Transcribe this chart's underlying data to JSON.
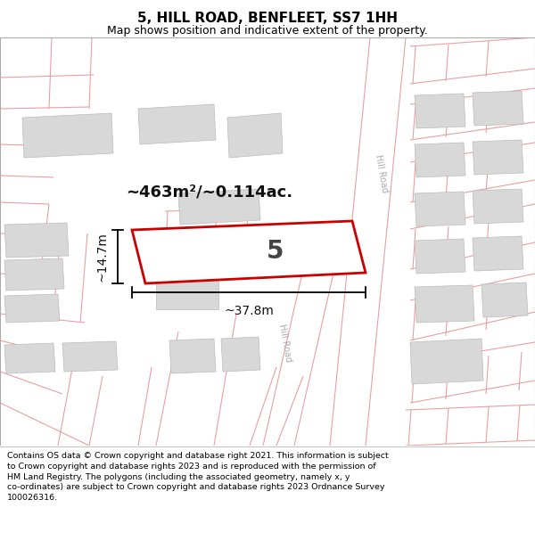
{
  "title": "5, HILL ROAD, BENFLEET, SS7 1HH",
  "subtitle": "Map shows position and indicative extent of the property.",
  "footer": "Contains OS data © Crown copyright and database right 2021. This information is subject\nto Crown copyright and database rights 2023 and is reproduced with the permission of\nHM Land Registry. The polygons (including the associated geometry, namely x, y\nco-ordinates) are subject to Crown copyright and database rights 2023 Ordnance Survey\n100026316.",
  "area_label": "~463m²/~0.114ac.",
  "width_label": "~37.8m",
  "height_label": "~14.7m",
  "plot_number": "5",
  "bg_color": "#ffffff",
  "road_line_color": "#e8a0a0",
  "building_fill": "#d8d8d8",
  "building_edge": "#bbbbbb",
  "plot_fill": "#ffffff",
  "plot_edge": "#cc0000",
  "road_label_color": "#aaaaaa",
  "title_color": "#000000",
  "footer_color": "#000000",
  "border_color": "#aaaaaa",
  "map_area": [
    0,
    42,
    600,
    500
  ],
  "footer_area": [
    0,
    500,
    600,
    625
  ]
}
